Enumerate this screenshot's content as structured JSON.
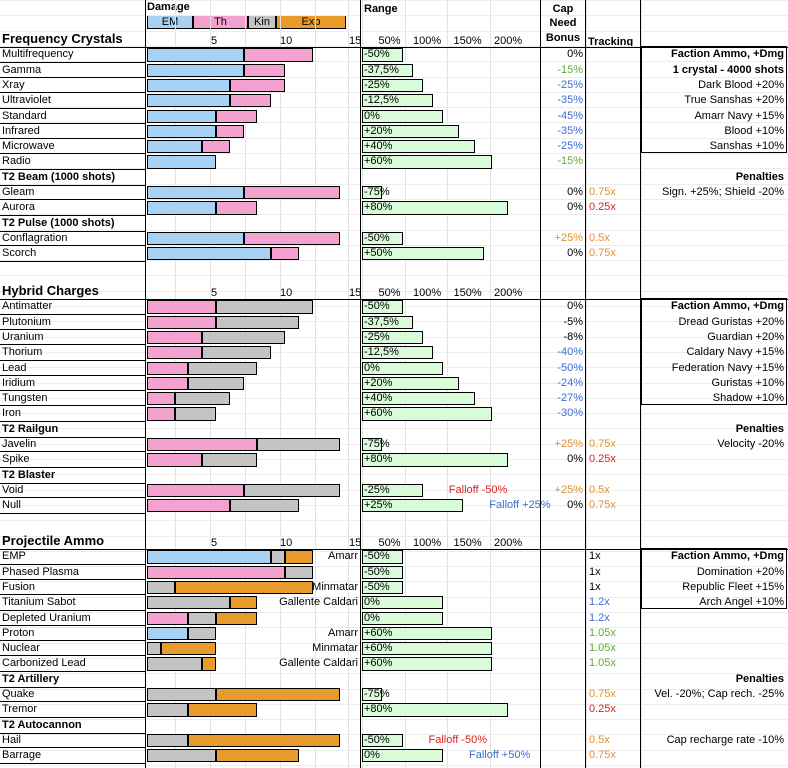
{
  "header": {
    "damage_label": "Damage",
    "legend": [
      "EM",
      "Th",
      "Kin",
      "Exp"
    ],
    "range_label": "Range",
    "cap_label": [
      "Cap",
      "Need",
      "Bonus"
    ],
    "tracking_label": "Tracking"
  },
  "colors": {
    "em": "#a8d2f4",
    "th": "#f3a2cf",
    "kin": "#c4c4c4",
    "exp": "#e89a2b",
    "range": "#d9fbd9",
    "blue": "#3a6fd2",
    "green": "#66a93a",
    "orange": "#e3902a",
    "red": "#e02020"
  },
  "sections": [
    {
      "id": "crystals",
      "title": "Frequency Crystals",
      "scale_ticks": [
        "5",
        "10",
        "15"
      ],
      "range_ticks": [
        "50%",
        "100%",
        "150%",
        "200%"
      ],
      "rows": [
        {
          "type": "ammo",
          "name": "Multifrequency",
          "dmg": {
            "em": 7,
            "th": 5
          },
          "range": "-50%",
          "range_pct": 50,
          "cap": "0%",
          "cap_color": "black"
        },
        {
          "type": "ammo",
          "name": "Gamma",
          "dmg": {
            "em": 7,
            "th": 3
          },
          "range": "-37,5%",
          "range_pct": 62.5,
          "cap": "-15%",
          "cap_color": "green"
        },
        {
          "type": "ammo",
          "name": "Xray",
          "dmg": {
            "em": 6,
            "th": 4
          },
          "range": "-25%",
          "range_pct": 75,
          "cap": "-25%",
          "cap_color": "blue"
        },
        {
          "type": "ammo",
          "name": "Ultraviolet",
          "dmg": {
            "em": 6,
            "th": 3
          },
          "range": "-12,5%",
          "range_pct": 87.5,
          "cap": "-35%",
          "cap_color": "blue"
        },
        {
          "type": "ammo",
          "name": "Standard",
          "dmg": {
            "em": 5,
            "th": 3
          },
          "range": "0%",
          "range_pct": 100,
          "cap": "-45%",
          "cap_color": "blue"
        },
        {
          "type": "ammo",
          "name": "Infrared",
          "dmg": {
            "em": 5,
            "th": 2
          },
          "range": "+20%",
          "range_pct": 120,
          "cap": "-35%",
          "cap_color": "blue"
        },
        {
          "type": "ammo",
          "name": "Microwave",
          "dmg": {
            "em": 4,
            "th": 2
          },
          "range": "+40%",
          "range_pct": 140,
          "cap": "-25%",
          "cap_color": "blue"
        },
        {
          "type": "ammo",
          "name": "Radio",
          "dmg": {
            "em": 5
          },
          "range": "+60%",
          "range_pct": 160,
          "cap": "-15%",
          "cap_color": "green"
        },
        {
          "type": "sub",
          "name": "T2 Beam (1000 shots)"
        },
        {
          "type": "ammo",
          "name": "Gleam",
          "dmg": {
            "em": 7,
            "th": 7
          },
          "range": "-75%",
          "range_pct": 25,
          "cap": "0%",
          "cap_color": "black",
          "tracking": "0.75x",
          "tracking_color": "orange"
        },
        {
          "type": "ammo",
          "name": "Aurora",
          "dmg": {
            "em": 5,
            "th": 3
          },
          "range": "+80%",
          "range_pct": 180,
          "cap": "0%",
          "cap_color": "black",
          "tracking": "0.25x",
          "tracking_color": "red"
        },
        {
          "type": "sub",
          "name": "T2 Pulse (1000 shots)"
        },
        {
          "type": "ammo",
          "name": "Conflagration",
          "dmg": {
            "em": 7,
            "th": 7
          },
          "range": "-50%",
          "range_pct": 50,
          "cap": "+25%",
          "cap_color": "orange",
          "tracking": "0.5x",
          "tracking_color": "orange"
        },
        {
          "type": "ammo",
          "name": "Scorch",
          "dmg": {
            "em": 9,
            "th": 2
          },
          "range": "+50%",
          "range_pct": 150,
          "cap": "0%",
          "cap_color": "black",
          "tracking": "0.75x",
          "tracking_color": "orange"
        }
      ],
      "side": [
        {
          "text": "Faction Ammo, +Dmg",
          "bold": true,
          "boxed": true
        },
        {
          "text": "1 crystal - 4000 shots",
          "bold": true,
          "boxed": true
        },
        {
          "text": "Dark Blood +20%"
        },
        {
          "text": "True Sanshas +20%"
        },
        {
          "text": "Amarr Navy +15%"
        },
        {
          "text": "Blood +10%"
        },
        {
          "text": "Sanshas +10%"
        },
        {
          "text": ""
        },
        {
          "text": "Penalties",
          "bold": true
        },
        {
          "text": "Sign. +25%; Shield -20%"
        }
      ]
    },
    {
      "id": "hybrid",
      "title": "Hybrid Charges",
      "scale_ticks": [
        "5",
        "10",
        "15"
      ],
      "range_ticks": [
        "50%",
        "100%",
        "150%",
        "200%"
      ],
      "rows": [
        {
          "type": "ammo",
          "name": "Antimatter",
          "dmg": {
            "th": 5,
            "kin": 7
          },
          "range": "-50%",
          "range_pct": 50,
          "cap": "0%",
          "cap_color": "black"
        },
        {
          "type": "ammo",
          "name": "Plutonium",
          "dmg": {
            "th": 5,
            "kin": 6
          },
          "range": "-37,5%",
          "range_pct": 62.5,
          "cap": "-5%",
          "cap_color": "black"
        },
        {
          "type": "ammo",
          "name": "Uranium",
          "dmg": {
            "th": 4,
            "kin": 6
          },
          "range": "-25%",
          "range_pct": 75,
          "cap": "-8%",
          "cap_color": "black"
        },
        {
          "type": "ammo",
          "name": "Thorium",
          "dmg": {
            "th": 4,
            "kin": 5
          },
          "range": "-12,5%",
          "range_pct": 87.5,
          "cap": "-40%",
          "cap_color": "blue"
        },
        {
          "type": "ammo",
          "name": "Lead",
          "dmg": {
            "th": 3,
            "kin": 5
          },
          "range": "0%",
          "range_pct": 100,
          "cap": "-50%",
          "cap_color": "blue"
        },
        {
          "type": "ammo",
          "name": "Iridium",
          "dmg": {
            "th": 3,
            "kin": 4
          },
          "range": "+20%",
          "range_pct": 120,
          "cap": "-24%",
          "cap_color": "blue"
        },
        {
          "type": "ammo",
          "name": "Tungsten",
          "dmg": {
            "th": 2,
            "kin": 4
          },
          "range": "+40%",
          "range_pct": 140,
          "cap": "-27%",
          "cap_color": "blue"
        },
        {
          "type": "ammo",
          "name": "Iron",
          "dmg": {
            "th": 2,
            "kin": 3
          },
          "range": "+60%",
          "range_pct": 160,
          "cap": "-30%",
          "cap_color": "blue"
        },
        {
          "type": "sub",
          "name": "T2 Railgun"
        },
        {
          "type": "ammo",
          "name": "Javelin",
          "dmg": {
            "th": 8,
            "kin": 6
          },
          "range": "-75%",
          "range_pct": 25,
          "cap": "+25%",
          "cap_color": "orange",
          "tracking": "0.75x",
          "tracking_color": "orange"
        },
        {
          "type": "ammo",
          "name": "Spike",
          "dmg": {
            "th": 4,
            "kin": 4
          },
          "range": "+80%",
          "range_pct": 180,
          "cap": "0%",
          "cap_color": "black",
          "tracking": "0.25x",
          "tracking_color": "red"
        },
        {
          "type": "sub",
          "name": "T2 Blaster"
        },
        {
          "type": "ammo",
          "name": "Void",
          "dmg": {
            "th": 7,
            "kin": 7
          },
          "range": "-25%",
          "range_pct": 75,
          "cap": "+25%",
          "cap_color": "orange",
          "tracking": "0.5x",
          "tracking_color": "orange",
          "note": "Falloff -50%",
          "note_color": "red"
        },
        {
          "type": "ammo",
          "name": "Null",
          "dmg": {
            "th": 6,
            "kin": 5
          },
          "range": "+25%",
          "range_pct": 125,
          "cap": "0%",
          "cap_color": "black",
          "tracking": "0.75x",
          "tracking_color": "orange",
          "note": "Falloff +25%",
          "note_color": "blue"
        }
      ],
      "side": [
        {
          "text": "Faction Ammo, +Dmg",
          "bold": true,
          "boxed": true
        },
        {
          "text": "Dread Guristas +20%"
        },
        {
          "text": "Guardian +20%"
        },
        {
          "text": "Caldary Navy +15%"
        },
        {
          "text": "Federation Navy +15%"
        },
        {
          "text": "Guristas +10%"
        },
        {
          "text": "Shadow +10%"
        },
        {
          "text": ""
        },
        {
          "text": "Penalties",
          "bold": true
        },
        {
          "text": "Velocity -20%"
        }
      ]
    },
    {
      "id": "projectile",
      "title": "Projectile Ammo",
      "scale_ticks": [
        "5",
        "10",
        "15"
      ],
      "range_ticks": [
        "50%",
        "100%",
        "150%",
        "200%"
      ],
      "rows": [
        {
          "type": "ammo",
          "name": "EMP",
          "dmg": {
            "em": 9,
            "kin": 1,
            "exp": 2
          },
          "range": "-50%",
          "range_pct": 50,
          "tracking": "1x",
          "tracking_color": "black",
          "faction": "Amarr"
        },
        {
          "type": "ammo",
          "name": "Phased Plasma",
          "dmg": {
            "th": 10,
            "kin": 2
          },
          "range": "-50%",
          "range_pct": 50,
          "tracking": "1x",
          "tracking_color": "black"
        },
        {
          "type": "ammo",
          "name": "Fusion",
          "dmg": {
            "kin": 2,
            "exp": 10
          },
          "range": "-50%",
          "range_pct": 50,
          "tracking": "1x",
          "tracking_color": "black",
          "faction": "Minmatar"
        },
        {
          "type": "ammo",
          "name": "Titanium Sabot",
          "dmg": {
            "kin": 6,
            "exp": 2
          },
          "range": "0%",
          "range_pct": 100,
          "tracking": "1.2x",
          "tracking_color": "blue",
          "faction": "Gallente  Caldari"
        },
        {
          "type": "ammo",
          "name": "Depleted Uranium",
          "dmg": {
            "th": 3,
            "kin": 2,
            "exp": 3
          },
          "range": "0%",
          "range_pct": 100,
          "tracking": "1.2x",
          "tracking_color": "blue"
        },
        {
          "type": "ammo",
          "name": "Proton",
          "dmg": {
            "em": 3,
            "kin": 2
          },
          "range": "+60%",
          "range_pct": 160,
          "tracking": "1.05x",
          "tracking_color": "green",
          "faction": "Amarr"
        },
        {
          "type": "ammo",
          "name": "Nuclear",
          "dmg": {
            "kin": 1,
            "exp": 4
          },
          "range": "+60%",
          "range_pct": 160,
          "tracking": "1.05x",
          "tracking_color": "green",
          "faction": "Minmatar"
        },
        {
          "type": "ammo",
          "name": "Carbonized Lead",
          "dmg": {
            "kin": 4,
            "exp": 1
          },
          "range": "+60%",
          "range_pct": 160,
          "tracking": "1.05x",
          "tracking_color": "green",
          "faction": "Gallente  Caldari"
        },
        {
          "type": "sub",
          "name": "T2 Artillery"
        },
        {
          "type": "ammo",
          "name": "Quake",
          "dmg": {
            "kin": 5,
            "exp": 9
          },
          "range": "-75%",
          "range_pct": 25,
          "tracking": "0.75x",
          "tracking_color": "orange"
        },
        {
          "type": "ammo",
          "name": "Tremor",
          "dmg": {
            "kin": 3,
            "exp": 5
          },
          "range": "+80%",
          "range_pct": 180,
          "tracking": "0.25x",
          "tracking_color": "red"
        },
        {
          "type": "sub",
          "name": "T2 Autocannon"
        },
        {
          "type": "ammo",
          "name": "Hail",
          "dmg": {
            "kin": 3,
            "exp": 11
          },
          "range": "-50%",
          "range_pct": 50,
          "tracking": "0.5x",
          "tracking_color": "orange",
          "note": "Falloff -50%",
          "note_color": "red"
        },
        {
          "type": "ammo",
          "name": "Barrage",
          "dmg": {
            "kin": 5,
            "exp": 6
          },
          "range": "0%",
          "range_pct": 100,
          "tracking": "0.75x",
          "tracking_color": "orange",
          "note": "Falloff +50%",
          "note_color": "blue"
        }
      ],
      "side": [
        {
          "text": "Faction Ammo, +Dmg",
          "bold": true,
          "boxed": true
        },
        {
          "text": "Domination +20%"
        },
        {
          "text": "Republic Fleet +15%"
        },
        {
          "text": "Arch Angel +10%"
        },
        {
          "text": ""
        },
        {
          "text": ""
        },
        {
          "text": ""
        },
        {
          "text": ""
        },
        {
          "text": "Penalties",
          "bold": true
        },
        {
          "text": "Vel. -20%; Cap rech. -25%"
        },
        {
          "text": ""
        },
        {
          "text": ""
        },
        {
          "text": "Cap recharge rate -10%"
        }
      ]
    }
  ]
}
